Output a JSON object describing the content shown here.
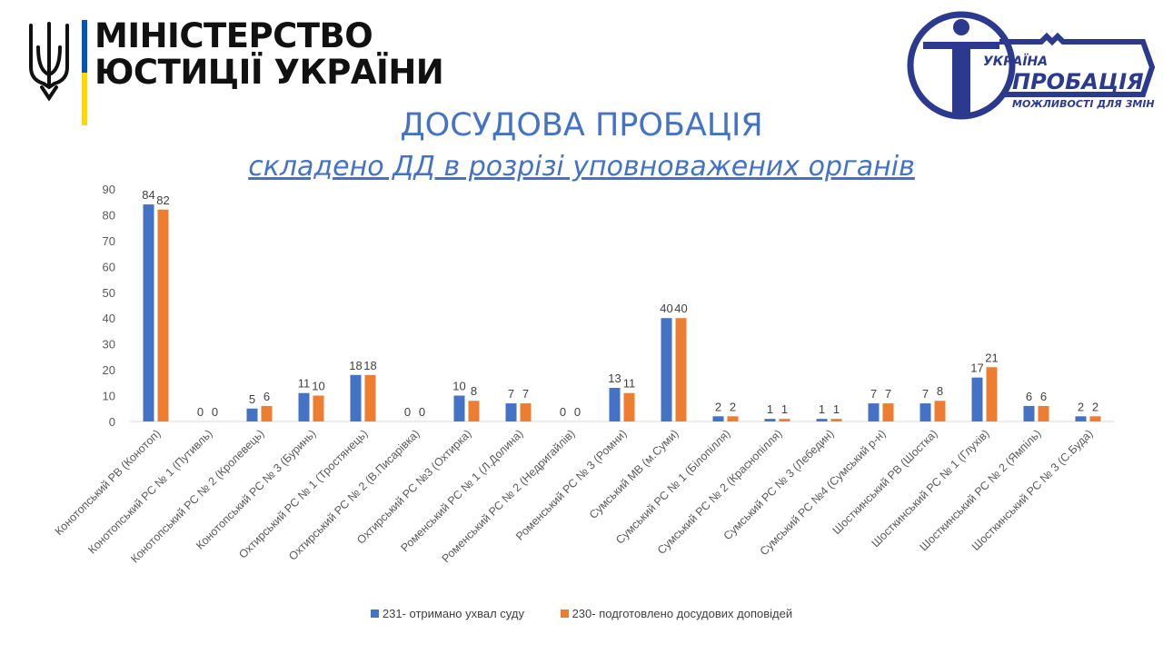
{
  "header": {
    "ministry_line1": "МІНІСТЕРСТВО",
    "ministry_line2": "ЮСТИЦІЇ УКРАЇНИ",
    "probation_logo": {
      "line1": "УКРАЇНА",
      "line2": "ПРОБАЦІЯ",
      "line3": "МОЖЛИВОСТІ ДЛЯ ЗМІН"
    },
    "title": "ДОСУДОВА ПРОБАЦІЯ",
    "subtitle": "складено ДД в розрізі уповноважених органів"
  },
  "colors": {
    "series1": "#4472c4",
    "series2": "#ed7d31",
    "axis_text": "#595959",
    "flag_blue": "#0057b7",
    "flag_yellow": "#ffd700",
    "logo_blue": "#2b3a8f"
  },
  "icons": [
    "trident-emblem",
    "probation-figure-key-logo"
  ],
  "chart_data": {
    "type": "bar",
    "ylim": [
      0,
      90
    ],
    "yticks": [
      0,
      10,
      20,
      30,
      40,
      50,
      60,
      70,
      80,
      90
    ],
    "grid": false,
    "legend_position": "bottom",
    "categories": [
      "Конотопський РВ (Конотоп)",
      "Конотопський РС № 1 (Путивль)",
      "Конотопський РС № 2 (Кролевець)",
      "Конотопський РС № 3 (Буринь)",
      "Охтирський РС № 1 (Тростянець)",
      "Охтирський РС № 2 (В.Писарівка)",
      "Охтирський РС №3 (Охтирка)",
      "Роменський РС № 1 (Л.Долина)",
      "Роменський РС № 2 (Недригайлів)",
      "Роменський РС № 3 (Ромни)",
      "Сумський МВ (м.Суми)",
      "Сумський РС № 1 (Білопілля)",
      "Сумський РС № 2 (Краснопілля)",
      "Сумський РС № 3 (Лебедин)",
      "Сумський РС №4 (Сумський р-н)",
      "Шосткинський РВ (Шостка)",
      "Шосткинський РС № 1 (Глухів)",
      "Шосткинський РС № 2 (Ямпіль)",
      "Шосткинський РС № 3 (С.Буда)"
    ],
    "series": [
      {
        "name": "231- отримано ухвал суду",
        "values": [
          84,
          0,
          5,
          11,
          18,
          0,
          10,
          7,
          0,
          13,
          40,
          2,
          1,
          1,
          7,
          7,
          17,
          6,
          2
        ]
      },
      {
        "name": "230- подготовлено досудових доповідей",
        "values": [
          82,
          0,
          6,
          10,
          18,
          0,
          8,
          7,
          0,
          11,
          40,
          2,
          1,
          1,
          7,
          8,
          21,
          6,
          2
        ]
      }
    ]
  }
}
